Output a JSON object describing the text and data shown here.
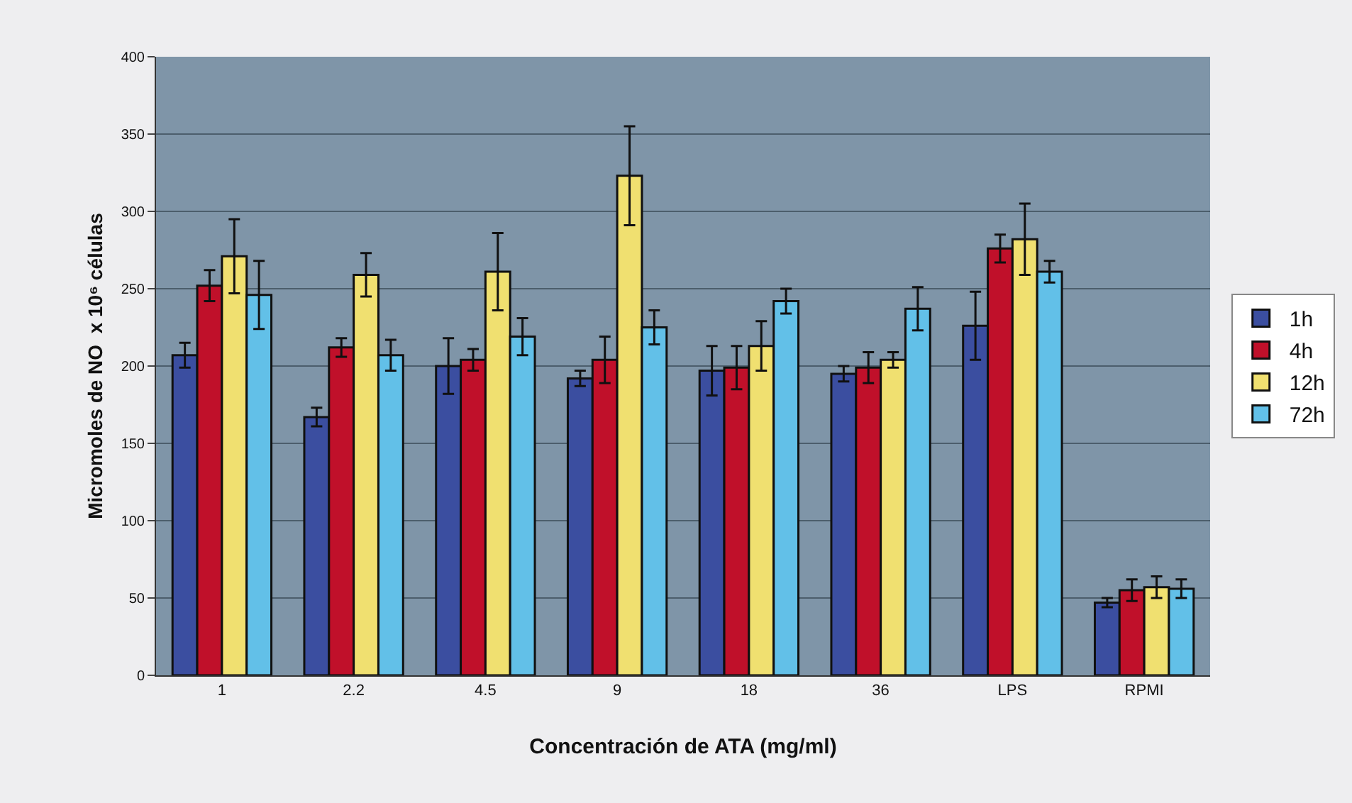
{
  "chart_data": {
    "type": "bar",
    "xlabel": "Concentración de ATA (mg/ml)",
    "ylabel": "Micromoles de NO  x 10⁶ células",
    "categories": [
      "1",
      "2.2",
      "4.5",
      "9",
      "18",
      "36",
      "LPS",
      "RPMI"
    ],
    "series": [
      {
        "name": "1h",
        "color": "#3b4ea0",
        "values": [
          207,
          167,
          200,
          192,
          197,
          195,
          226,
          47
        ],
        "errors": [
          8,
          6,
          18,
          5,
          16,
          5,
          22,
          3
        ]
      },
      {
        "name": "4h",
        "color": "#c0102a",
        "values": [
          252,
          212,
          204,
          204,
          199,
          199,
          276,
          55
        ],
        "errors": [
          10,
          6,
          7,
          15,
          14,
          10,
          9,
          7
        ]
      },
      {
        "name": "12h",
        "color": "#f0e070",
        "values": [
          271,
          259,
          261,
          323,
          213,
          204,
          282,
          57
        ],
        "errors": [
          24,
          14,
          25,
          32,
          16,
          5,
          23,
          7
        ]
      },
      {
        "name": "72h",
        "color": "#62c0e8",
        "values": [
          246,
          207,
          219,
          225,
          242,
          237,
          261,
          56
        ],
        "errors": [
          22,
          10,
          12,
          11,
          8,
          14,
          7,
          6
        ]
      }
    ],
    "ylim": [
      0,
      400
    ],
    "yticks": [
      0,
      50,
      100,
      150,
      200,
      250,
      300,
      350,
      400
    ],
    "grid": "y",
    "legend": "right"
  }
}
